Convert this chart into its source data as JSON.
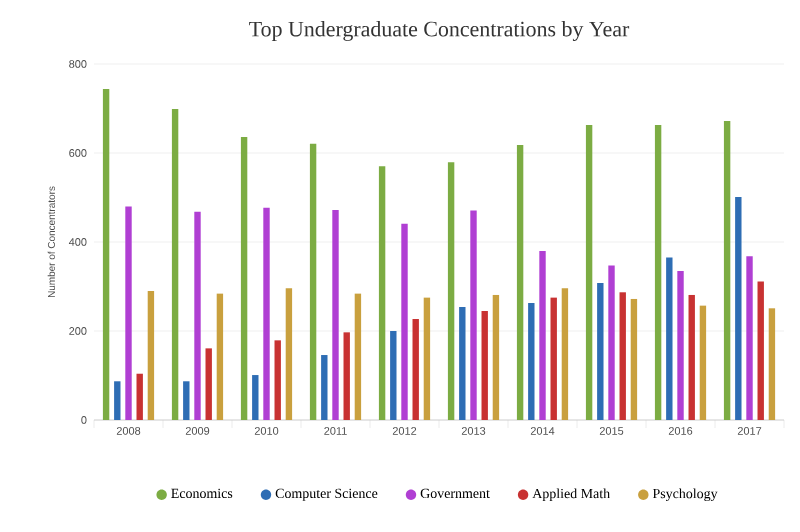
{
  "chart_data": {
    "type": "bar",
    "title": "Top Undergraduate Concentrations by Year",
    "ylabel": "Number of Concentrators",
    "categories": [
      "2008",
      "2009",
      "2010",
      "2011",
      "2012",
      "2013",
      "2014",
      "2015",
      "2016",
      "2017"
    ],
    "series": [
      {
        "name": "Economics",
        "color": "#7cac43",
        "values": [
          744,
          699,
          636,
          621,
          570,
          579,
          618,
          663,
          663,
          672
        ]
      },
      {
        "name": "Computer Science",
        "color": "#2e6db4",
        "values": [
          87,
          87,
          101,
          146,
          200,
          254,
          263,
          308,
          365,
          501
        ]
      },
      {
        "name": "Government",
        "color": "#b03fd3",
        "values": [
          480,
          468,
          477,
          472,
          441,
          471,
          380,
          347,
          335,
          368
        ]
      },
      {
        "name": "Applied Math",
        "color": "#c83232",
        "values": [
          104,
          161,
          179,
          197,
          227,
          245,
          275,
          287,
          281,
          311
        ]
      },
      {
        "name": "Psychology",
        "color": "#c9a03e",
        "values": [
          290,
          284,
          296,
          284,
          275,
          281,
          296,
          272,
          257,
          251
        ]
      }
    ],
    "ylim": [
      0,
      800
    ],
    "yticks": [
      0,
      200,
      400,
      600,
      800
    ],
    "grid": "y",
    "legend": "bottom"
  }
}
